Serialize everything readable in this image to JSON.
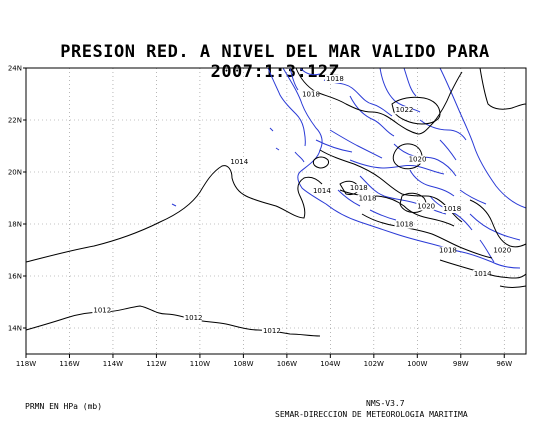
{
  "title": "PRESION RED. A NIVEL DEL MAR VALIDO PARA 2007:1:3:12Z",
  "footer": {
    "variable": "PRMN EN HPa (mb)",
    "version": "NMS-V3.7",
    "credit": "SEMAR-DIRECCION DE METEOROLOGIA MARITIMA"
  },
  "map": {
    "lon_ticks": [
      "118W",
      "116W",
      "114W",
      "112W",
      "110W",
      "108W",
      "106W",
      "104W",
      "102W",
      "100W",
      "98W",
      "96W"
    ],
    "lat_ticks": [
      "14N",
      "16N",
      "18N",
      "20N",
      "22N",
      "24N"
    ],
    "lon_range": [
      -118,
      -95
    ],
    "lat_range": [
      13,
      24
    ],
    "grid": true,
    "colors": {
      "coast": "#2b3bd6",
      "isobar": "#000000",
      "grid": "#888888"
    }
  },
  "contour_labels": [
    {
      "text": "1018",
      "lon": -104.2,
      "lat": 23.5
    },
    {
      "text": "1018",
      "lon": -105.3,
      "lat": 22.9
    },
    {
      "text": "1022",
      "lon": -101.0,
      "lat": 22.3
    },
    {
      "text": "1014",
      "lon": -108.6,
      "lat": 20.3
    },
    {
      "text": "1020",
      "lon": -100.4,
      "lat": 20.4
    },
    {
      "text": "1014",
      "lon": -104.8,
      "lat": 19.2
    },
    {
      "text": "1018",
      "lon": -103.1,
      "lat": 19.3
    },
    {
      "text": "1018",
      "lon": -102.7,
      "lat": 18.9
    },
    {
      "text": "1020",
      "lon": -100.0,
      "lat": 18.6
    },
    {
      "text": "1018",
      "lon": -98.8,
      "lat": 18.5
    },
    {
      "text": "1018",
      "lon": -101.0,
      "lat": 17.9
    },
    {
      "text": "1018",
      "lon": -99.0,
      "lat": 16.9
    },
    {
      "text": "1020",
      "lon": -96.5,
      "lat": 16.9
    },
    {
      "text": "1014",
      "lon": -97.4,
      "lat": 16.0
    },
    {
      "text": "1012",
      "lon": -114.9,
      "lat": 14.6
    },
    {
      "text": "1012",
      "lon": -110.7,
      "lat": 14.3
    },
    {
      "text": "1012",
      "lon": -107.1,
      "lat": 13.8
    }
  ]
}
